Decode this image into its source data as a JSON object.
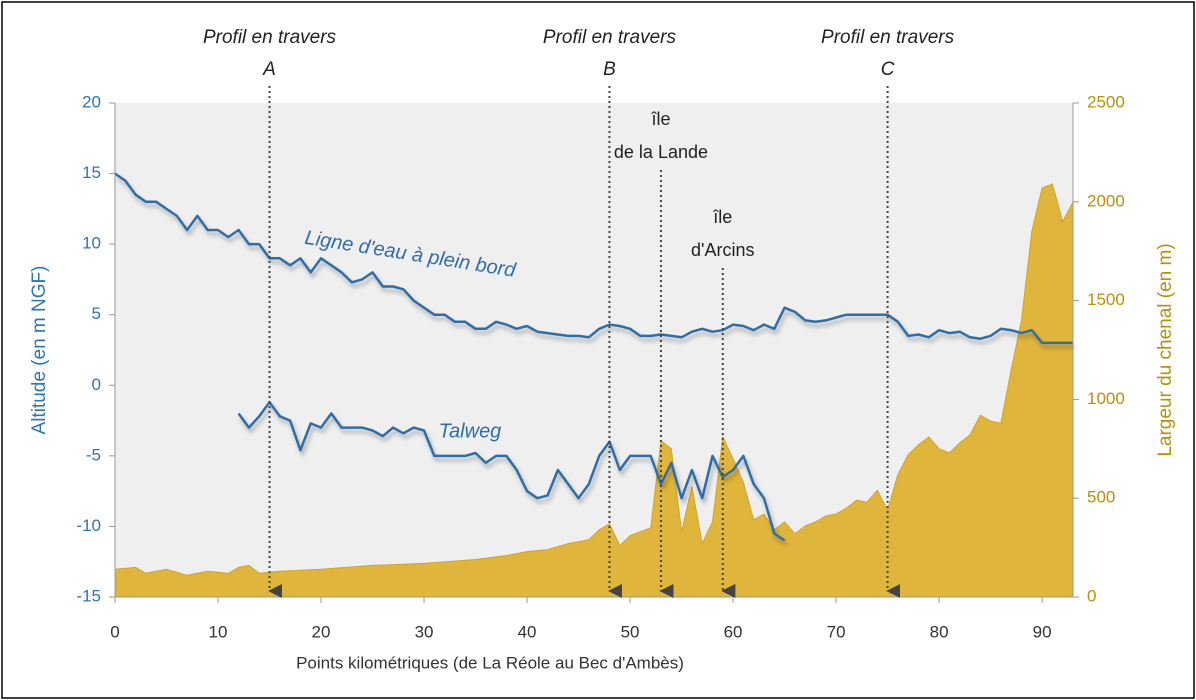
{
  "chart_data": {
    "type": "line",
    "xlabel": "Points kilométriques (de La Réole au Bec d'Ambès)",
    "ylabel": "Altitude (en m NGF)",
    "y2label": "Largeur du chenal (en m)",
    "xlim": [
      0,
      93
    ],
    "xticks": [
      0,
      10,
      20,
      30,
      40,
      50,
      60,
      70,
      80,
      90
    ],
    "ylim": [
      -15,
      20
    ],
    "yticks": [
      -15,
      -10,
      -5,
      0,
      5,
      10,
      15,
      20
    ],
    "y2lim": [
      0,
      2500
    ],
    "y2ticks": [
      0,
      500,
      1000,
      1500,
      2000,
      2500
    ],
    "y_color": "#2e75b6",
    "y2_color": "#b8900a",
    "series": [
      {
        "name": "Ligne d'eau à plein bord",
        "color": "#2f6ea8",
        "x": [
          0,
          1,
          2,
          3,
          4,
          5,
          6,
          7,
          8,
          9,
          10,
          11,
          12,
          13,
          14,
          15,
          16,
          17,
          18,
          19,
          20,
          21,
          22,
          23,
          24,
          25,
          26,
          27,
          28,
          29,
          30,
          31,
          32,
          33,
          34,
          35,
          36,
          37,
          38,
          39,
          40,
          41,
          42,
          43,
          44,
          45,
          46,
          47,
          48,
          49,
          50,
          51,
          52,
          53,
          54,
          55,
          56,
          57,
          58,
          59,
          60,
          61,
          62,
          63,
          64,
          65,
          66,
          67,
          68,
          69,
          70,
          71,
          72,
          73,
          74,
          75,
          76,
          77,
          78,
          79,
          80,
          81,
          82,
          83,
          84,
          85,
          86,
          87,
          88,
          89,
          90,
          91,
          92,
          93
        ],
        "values": [
          15,
          14.5,
          13.5,
          13,
          13,
          12.5,
          12,
          11,
          12,
          11,
          11,
          10.5,
          11,
          10,
          10,
          9,
          9,
          8.5,
          9,
          8,
          9,
          8.5,
          8,
          7.3,
          7.5,
          8,
          7,
          7,
          6.8,
          6,
          5.5,
          5,
          5,
          4.5,
          4.5,
          4,
          4,
          4.5,
          4.3,
          4,
          4.2,
          3.8,
          3.7,
          3.6,
          3.5,
          3.5,
          3.4,
          4,
          4.3,
          4.2,
          4,
          3.5,
          3.5,
          3.6,
          3.5,
          3.4,
          3.8,
          4,
          3.8,
          3.9,
          4.3,
          4.2,
          3.9,
          4.3,
          4,
          5.5,
          5.2,
          4.6,
          4.5,
          4.6,
          4.8,
          5,
          5,
          5,
          5,
          5,
          4.5,
          3.5,
          3.6,
          3.4,
          3.9,
          3.7,
          3.8,
          3.4,
          3.3,
          3.5,
          4,
          3.9,
          3.7,
          3.9,
          3,
          3,
          3,
          3
        ]
      },
      {
        "name": "Talweg",
        "color": "#2f6ea8",
        "x": [
          12,
          13,
          14,
          15,
          16,
          17,
          18,
          19,
          20,
          21,
          22,
          23,
          24,
          25,
          26,
          27,
          28,
          29,
          30,
          31,
          32,
          33,
          34,
          35,
          36,
          37,
          38,
          39,
          40,
          41,
          42,
          43,
          44,
          45,
          46,
          47,
          48,
          49,
          50,
          51,
          52,
          53,
          54,
          55,
          56,
          57,
          58,
          59,
          60,
          61,
          62,
          63,
          64,
          65
        ],
        "values": [
          -2,
          -3,
          -2.2,
          -1.2,
          -2.2,
          -2.5,
          -4.6,
          -2.7,
          -3,
          -2,
          -3,
          -3,
          -3,
          -3.2,
          -3.6,
          -3,
          -3.4,
          -3,
          -3.2,
          -5,
          -5,
          -5,
          -5,
          -4.8,
          -5.5,
          -5,
          -5,
          -6,
          -7.5,
          -8,
          -7.8,
          -6,
          -7,
          -8,
          -7,
          -5,
          -4,
          -6,
          -5,
          -5,
          -5,
          -7,
          -5.5,
          -8,
          -6,
          -8,
          -5,
          -6.5,
          -6,
          -5,
          -7,
          -8,
          -10.5,
          -11
        ]
      },
      {
        "type": "area",
        "axis": "y2",
        "color": "#e0b53b",
        "x": [
          0,
          2,
          3,
          5,
          7,
          9,
          11,
          12,
          13,
          14,
          16,
          20,
          25,
          30,
          35,
          38,
          40,
          42,
          44,
          46,
          47,
          48,
          49,
          50,
          52,
          53,
          54,
          55,
          56,
          57,
          58,
          59,
          60,
          61,
          62,
          63,
          64,
          65,
          66,
          67,
          68,
          69,
          70,
          71,
          72,
          73,
          74,
          75,
          76,
          77,
          78,
          79,
          80,
          81,
          82,
          83,
          84,
          85,
          86,
          87,
          88,
          89,
          90,
          91,
          92,
          93
        ],
        "values": [
          140,
          150,
          120,
          140,
          110,
          130,
          120,
          150,
          160,
          120,
          130,
          140,
          160,
          170,
          190,
          210,
          230,
          240,
          270,
          290,
          340,
          370,
          260,
          310,
          350,
          790,
          750,
          330,
          560,
          270,
          380,
          810,
          700,
          580,
          390,
          420,
          340,
          380,
          320,
          360,
          380,
          410,
          420,
          450,
          490,
          480,
          540,
          440,
          620,
          720,
          770,
          810,
          750,
          730,
          780,
          820,
          920,
          890,
          880,
          1150,
          1400,
          1850,
          2070,
          2090,
          1900,
          2000
        ]
      }
    ],
    "annotations": [
      {
        "text": "Profil en travers",
        "letter": "A",
        "x": 15
      },
      {
        "text": "Profil en travers",
        "letter": "B",
        "x": 48
      },
      {
        "text": "Profil  en travers",
        "letter": "C",
        "x": 75
      },
      {
        "lines": [
          "île",
          "de la Lande"
        ],
        "x": 53
      },
      {
        "lines": [
          "île",
          "d'Arcins"
        ],
        "x": 59
      }
    ]
  }
}
